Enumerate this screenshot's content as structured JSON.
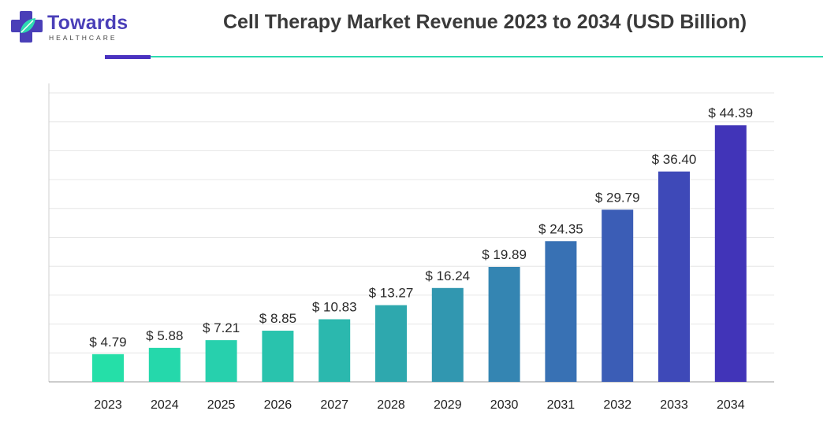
{
  "brand": {
    "name": "Towards",
    "sub": "HEALTHCARE",
    "colors": {
      "primary": "#4a3fb8",
      "accent": "#2ddbb0"
    }
  },
  "chart_data": {
    "type": "bar",
    "title": "Cell Therapy Market Revenue 2023 to 2034 (USD Billion)",
    "categories": [
      "2023",
      "2024",
      "2025",
      "2026",
      "2027",
      "2028",
      "2029",
      "2030",
      "2031",
      "2032",
      "2033",
      "2034"
    ],
    "values": [
      4.79,
      5.88,
      7.21,
      8.85,
      10.83,
      13.27,
      16.24,
      19.89,
      24.35,
      29.79,
      36.4,
      44.39
    ],
    "value_labels": [
      "$ 4.79",
      "$ 5.88",
      "$ 7.21",
      "$ 8.85",
      "$ 10.83",
      "$ 13.27",
      "$ 16.24",
      "$ 19.89",
      "$ 24.35",
      "$ 29.79",
      "$ 36.40",
      "$ 44.39"
    ],
    "xlabel": "",
    "ylabel": "",
    "ylim": [
      0,
      50
    ],
    "grid": true,
    "bar_colors": [
      "#25dfa8",
      "#25d8ab",
      "#27d0ad",
      "#29c3ad",
      "#2bb8ae",
      "#2ea8ae",
      "#3197b0",
      "#3485b2",
      "#3871b4",
      "#3b5db6",
      "#3e49b8",
      "#4134b8"
    ]
  }
}
